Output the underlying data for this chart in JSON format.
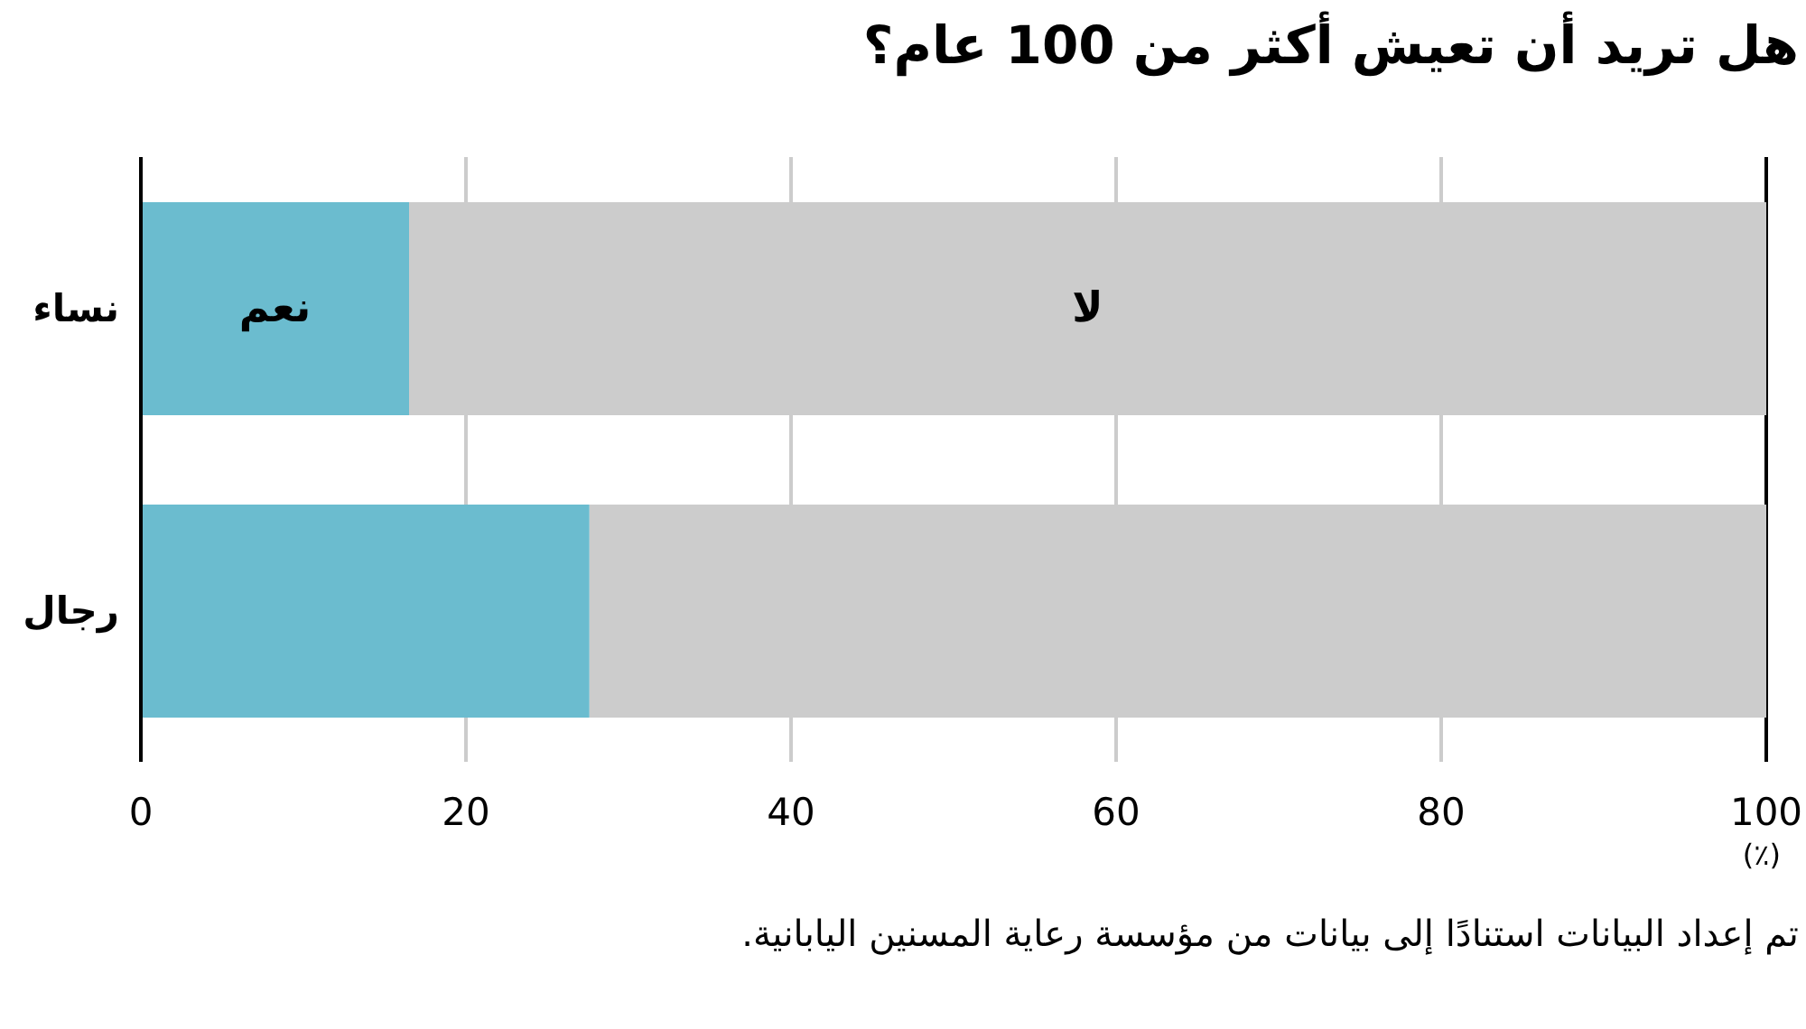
{
  "chart_data": {
    "type": "bar",
    "orientation": "horizontal",
    "stacked": true,
    "title": "هل تريد أن تعيش أكثر من 100 عام؟",
    "xlabel": "(٪)",
    "categories": [
      "نساء",
      "رجال"
    ],
    "series": [
      {
        "name": "نعم",
        "color": "#6bbccf",
        "values": [
          16.5,
          27.6
        ]
      },
      {
        "name": "لا",
        "color": "#cccccc",
        "values": [
          83.5,
          72.4
        ]
      }
    ],
    "xlim": [
      0,
      100
    ],
    "xticks": [
      0,
      20,
      40,
      60,
      80,
      100
    ],
    "grid": "x",
    "legend": false,
    "annotations": [
      "تم إعداد البيانات استنادًا إلى بيانات من مؤسسة رعاية المسنين اليابانية."
    ]
  }
}
